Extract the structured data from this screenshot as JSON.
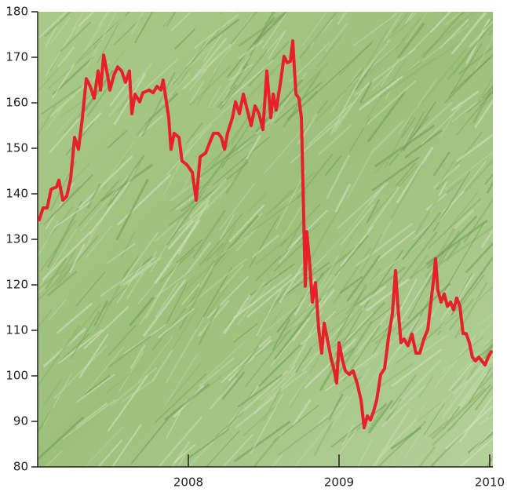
{
  "chart_data": {
    "type": "line",
    "color": "#e8202a",
    "xlim": [
      2007,
      2010.021
    ],
    "xticks": [
      2008,
      2009,
      2010
    ],
    "ylim": [
      80,
      180
    ],
    "yticks": [
      80,
      90,
      100,
      110,
      120,
      130,
      140,
      150,
      160,
      170,
      180
    ],
    "x": [
      2007.01,
      2007.036,
      2007.063,
      2007.089,
      2007.125,
      2007.141,
      2007.167,
      2007.193,
      2007.219,
      2007.245,
      2007.271,
      2007.297,
      2007.323,
      2007.349,
      2007.375,
      2007.401,
      2007.417,
      2007.438,
      2007.464,
      2007.479,
      2007.505,
      2007.531,
      2007.557,
      2007.583,
      2007.609,
      2007.625,
      2007.646,
      2007.677,
      2007.698,
      2007.74,
      2007.766,
      2007.792,
      2007.818,
      2007.833,
      2007.854,
      2007.87,
      2007.885,
      2007.906,
      2007.938,
      2007.958,
      2007.99,
      2008.026,
      2008.052,
      2008.078,
      2008.115,
      2008.146,
      2008.167,
      2008.198,
      2008.219,
      2008.24,
      2008.26,
      2008.292,
      2008.313,
      2008.339,
      2008.365,
      2008.391,
      2008.417,
      2008.443,
      2008.469,
      2008.495,
      2008.521,
      2008.547,
      2008.563,
      2008.583,
      2008.615,
      2008.635,
      2008.656,
      2008.677,
      2008.693,
      2008.714,
      2008.734,
      2008.75,
      2008.76,
      2008.776,
      2008.786,
      2008.807,
      2008.823,
      2008.844,
      2008.865,
      2008.885,
      2008.901,
      2008.927,
      2008.948,
      2008.969,
      2008.984,
      2009.0,
      2009.021,
      2009.042,
      2009.068,
      2009.094,
      2009.12,
      2009.146,
      2009.167,
      2009.188,
      2009.208,
      2009.229,
      2009.25,
      2009.276,
      2009.302,
      2009.328,
      2009.354,
      2009.375,
      2009.391,
      2009.411,
      2009.432,
      2009.458,
      2009.484,
      2009.51,
      2009.536,
      2009.563,
      2009.589,
      2009.604,
      2009.625,
      2009.641,
      2009.656,
      2009.677,
      2009.698,
      2009.719,
      2009.74,
      2009.76,
      2009.781,
      2009.802,
      2009.823,
      2009.844,
      2009.865,
      2009.885,
      2009.906,
      2009.927,
      2009.948,
      2009.969,
      2009.99,
      2010.01
    ],
    "values": [
      134.3,
      136.9,
      136.9,
      141,
      141.5,
      143,
      138.6,
      139.5,
      143.3,
      152.4,
      149.8,
      156.7,
      165.3,
      163.6,
      161,
      167,
      162.8,
      170.5,
      166,
      162.8,
      166,
      167.9,
      167,
      164.5,
      167,
      157.6,
      161.9,
      160.2,
      162.2,
      162.8,
      162.2,
      163.6,
      162.8,
      165,
      160.2,
      156.7,
      149.8,
      153.3,
      152.4,
      147.2,
      146.4,
      144.7,
      138.6,
      148.1,
      149,
      151.6,
      153.3,
      153.3,
      152.4,
      149.8,
      153.3,
      156.7,
      160.2,
      157.6,
      161.9,
      158.4,
      155,
      159.3,
      157.6,
      154.1,
      167,
      156.7,
      161.9,
      158.4,
      165.3,
      170.2,
      168.8,
      169.1,
      173.6,
      161.9,
      161,
      156.7,
      143,
      119.7,
      131.7,
      124,
      116.2,
      120.5,
      110.2,
      105,
      111.6,
      107.3,
      103.7,
      101.1,
      98.4,
      107.3,
      103.7,
      101.1,
      100.3,
      101.1,
      98.4,
      94.7,
      88.6,
      91.2,
      90.3,
      92.1,
      94.7,
      100.3,
      101.6,
      108.4,
      113.6,
      123.1,
      115.3,
      107.3,
      108.1,
      106.6,
      109.2,
      105,
      105,
      108.1,
      110.2,
      114.5,
      120.5,
      125.7,
      118.8,
      116.2,
      118,
      115.3,
      116.2,
      114.5,
      117.1,
      115.3,
      109.3,
      109.3,
      107.3,
      104.1,
      103.3,
      104.1,
      103.3,
      102.4,
      104.1,
      105.3
    ]
  }
}
